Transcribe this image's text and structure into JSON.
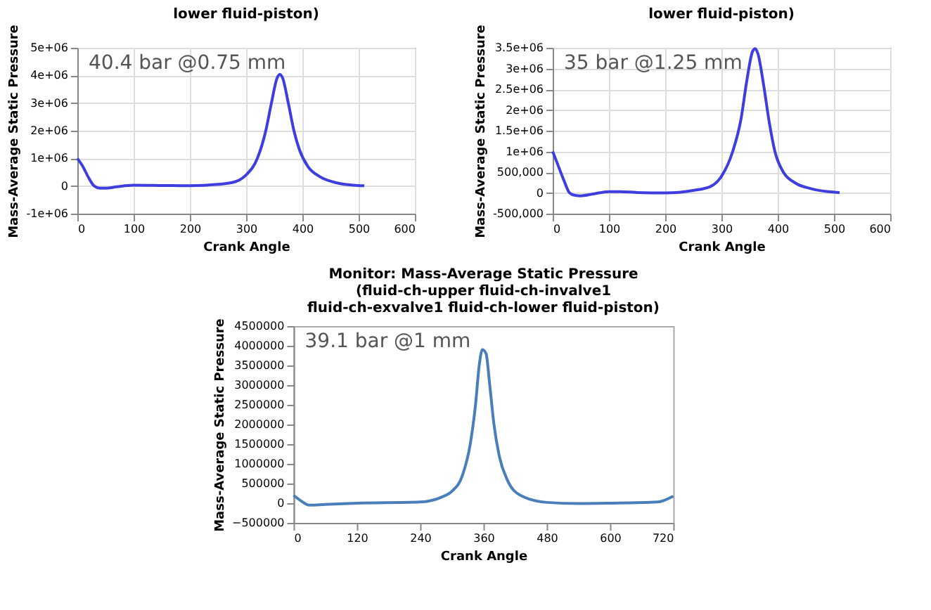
{
  "chart_data": [
    {
      "type": "line",
      "title": "lower fluid-piston)",
      "xlabel": "Crank Angle",
      "ylabel": "Mass-Average Static Pressure",
      "annotations": [
        "40.4 bar @0.75 mm"
      ],
      "grid": true,
      "xlim": [
        0,
        600
      ],
      "xticks": [
        0,
        100,
        200,
        300,
        400,
        500,
        600
      ],
      "ylim": [
        -1000000,
        5000000
      ],
      "yticks": [
        {
          "value": -1000000,
          "label": "-1e+06"
        },
        0,
        {
          "value": 1000000,
          "label": "1e+06"
        },
        {
          "value": 2000000,
          "label": "2e+06"
        },
        {
          "value": 3000000,
          "label": "3e+06"
        },
        {
          "value": 4000000,
          "label": "4e+06"
        },
        {
          "value": 5000000,
          "label": "5e+06"
        }
      ],
      "series": [
        {
          "color": "#3d3de0",
          "x": [
            0,
            10,
            20,
            30,
            40,
            50,
            70,
            100,
            150,
            200,
            250,
            280,
            300,
            320,
            335,
            345,
            355,
            360,
            365,
            375,
            385,
            395,
            410,
            430,
            460,
            490,
            510
          ],
          "values": [
            1000000,
            700000,
            300000,
            0,
            -80000,
            -80000,
            -30000,
            30000,
            20000,
            10000,
            60000,
            150000,
            400000,
            1000000,
            2000000,
            3000000,
            3900000,
            4040000,
            3900000,
            3000000,
            2000000,
            1300000,
            700000,
            350000,
            120000,
            30000,
            10000
          ]
        }
      ]
    },
    {
      "type": "line",
      "title": "lower fluid-piston)",
      "xlabel": "Crank Angle",
      "ylabel": "Mass-Average Static Pressure",
      "annotations": [
        "35 bar @1.25 mm"
      ],
      "grid": true,
      "xlim": [
        0,
        600
      ],
      "xticks": [
        0,
        100,
        200,
        300,
        400,
        500,
        600
      ],
      "ylim": [
        -500000,
        3500000
      ],
      "yticks": [
        {
          "value": -500000,
          "label": "-500,000"
        },
        0,
        {
          "value": 500000,
          "label": "500,000"
        },
        {
          "value": 1000000,
          "label": "1e+06"
        },
        {
          "value": 1500000,
          "label": "1.5e+06"
        },
        {
          "value": 2000000,
          "label": "2e+06"
        },
        {
          "value": 2500000,
          "label": "2.5e+06"
        },
        {
          "value": 3000000,
          "label": "3e+06"
        },
        {
          "value": 3500000,
          "label": "3.5e+06"
        }
      ],
      "series": [
        {
          "color": "#3d3de0",
          "x": [
            0,
            10,
            20,
            30,
            40,
            50,
            70,
            100,
            120,
            150,
            200,
            250,
            280,
            300,
            320,
            335,
            345,
            355,
            360,
            365,
            375,
            385,
            395,
            410,
            430,
            460,
            490,
            510
          ],
          "values": [
            1000000,
            650000,
            300000,
            0,
            -60000,
            -70000,
            -30000,
            30000,
            30000,
            10000,
            0,
            60000,
            150000,
            400000,
            1000000,
            1800000,
            2700000,
            3400000,
            3480000,
            3350000,
            2600000,
            1700000,
            1000000,
            500000,
            250000,
            100000,
            30000,
            10000
          ]
        }
      ]
    },
    {
      "type": "line",
      "title": "Monitor: Mass-Average Static Pressure (fluid-ch-upper fluid-ch-invalve1 fluid-ch-exvalve1 fluid-ch-lower fluid-piston)",
      "xlabel": "Crank Angle",
      "ylabel": "Mass-Average Static Pressure",
      "annotations": [
        "39.1 bar @1 mm"
      ],
      "grid": false,
      "xlim": [
        0,
        720
      ],
      "xticks": [
        0,
        120,
        240,
        360,
        480,
        600,
        720
      ],
      "ylim": [
        -500000,
        4500000
      ],
      "yticks": [
        -500000,
        0,
        500000,
        1000000,
        1500000,
        2000000,
        2500000,
        3000000,
        3500000,
        4000000,
        4500000
      ],
      "series": [
        {
          "color": "#4a7ebb",
          "x": [
            0,
            15,
            30,
            60,
            120,
            240,
            280,
            300,
            320,
            335,
            345,
            352,
            358,
            365,
            372,
            380,
            390,
            405,
            430,
            480,
            540,
            600,
            690,
            720
          ],
          "values": [
            200000,
            50000,
            -50000,
            -30000,
            0,
            30000,
            150000,
            300000,
            700000,
            1500000,
            2500000,
            3500000,
            3900000,
            3800000,
            3000000,
            2000000,
            1200000,
            600000,
            200000,
            20000,
            -10000,
            0,
            30000,
            180000
          ]
        }
      ]
    }
  ]
}
